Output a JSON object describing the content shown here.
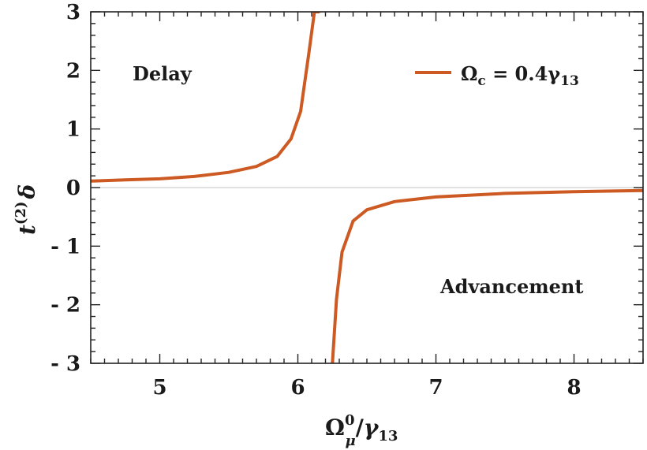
{
  "chart_data": {
    "type": "line",
    "xlabel": {
      "main": "Ω",
      "sup": "0",
      "sub": "μ",
      "slash": "/",
      "gamma": "γ",
      "gsub": "13"
    },
    "ylabel": {
      "main": "t",
      "sup": "(2)",
      "tail": "δ"
    },
    "xlim": [
      4.5,
      8.5
    ],
    "ylim": [
      -3,
      3
    ],
    "xticks": [
      5,
      6,
      7,
      8
    ],
    "xtick_labels": [
      "5",
      "6",
      "7",
      "8"
    ],
    "yticks": [
      -3,
      -2,
      -1,
      0,
      1,
      2,
      3
    ],
    "ytick_labels": [
      "- 3",
      "- 2",
      "- 1",
      "0",
      "1",
      "2",
      "3"
    ],
    "grid": false,
    "legend_position": "top-right",
    "legend": {
      "omega": "Ω",
      "sub": "c",
      "rest": " = 0.4γ",
      "gsub": "13"
    },
    "series": [
      {
        "color": "#cc5a22",
        "x": [
          4.5,
          4.75,
          5.0,
          5.25,
          5.5,
          5.7,
          5.85,
          5.95,
          6.02,
          6.08,
          6.12,
          6.15,
          6.25,
          6.28,
          6.32,
          6.4,
          6.5,
          6.7,
          7.0,
          7.5,
          8.0,
          8.5
        ],
        "y": [
          0.11,
          0.13,
          0.15,
          0.19,
          0.26,
          0.36,
          0.53,
          0.83,
          1.3,
          2.3,
          3.0,
          3.0,
          -3.0,
          -1.9,
          -1.1,
          -0.57,
          -0.38,
          -0.24,
          -0.16,
          -0.1,
          -0.07,
          -0.05
        ]
      }
    ],
    "annotations": [
      "Delay",
      "Advancement"
    ]
  }
}
